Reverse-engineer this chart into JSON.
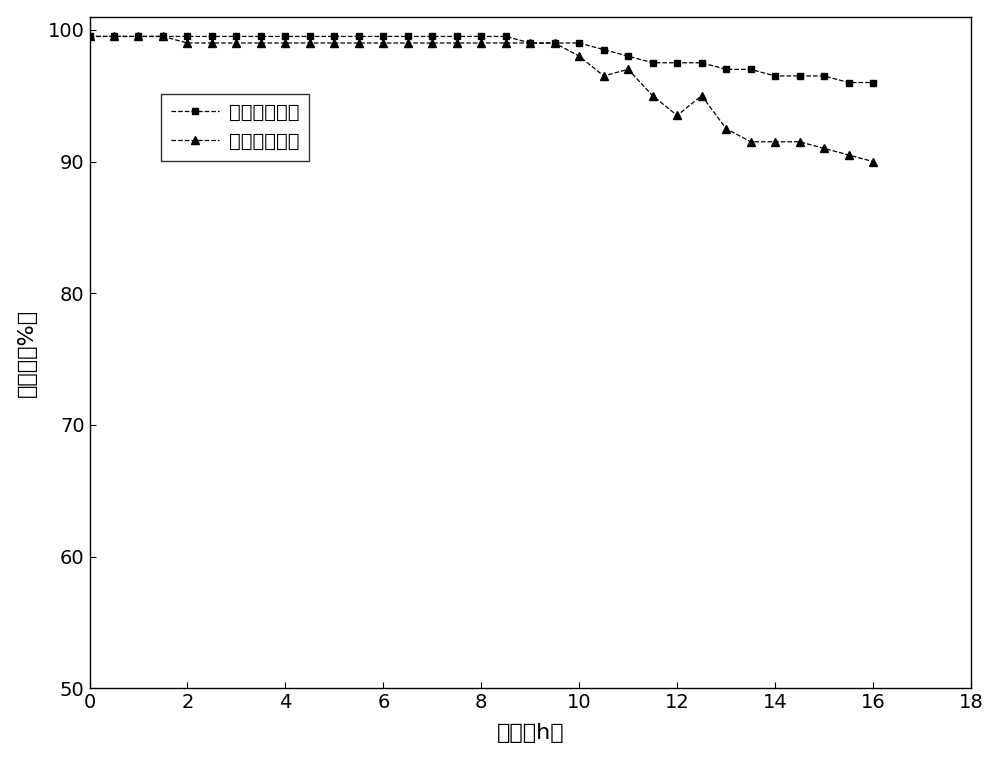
{
  "series1_label": "微波加热方式",
  "series2_label": "普通加热方式",
  "xlabel": "时间（h）",
  "ylabel": "转化率（%）",
  "xlim": [
    0,
    18
  ],
  "ylim": [
    50,
    101
  ],
  "xticks": [
    0,
    2,
    4,
    6,
    8,
    10,
    12,
    14,
    16,
    18
  ],
  "yticks": [
    50,
    60,
    70,
    80,
    90,
    100
  ],
  "background_color": "#ffffff",
  "line_color": "#000000",
  "series1_x": [
    0,
    0.5,
    1.0,
    1.5,
    2.0,
    2.5,
    3.0,
    3.5,
    4.0,
    4.5,
    5.0,
    5.5,
    6.0,
    6.5,
    7.0,
    7.5,
    8.0,
    8.5,
    9.0,
    9.5,
    10.0,
    10.5,
    11.0,
    11.5,
    12.0,
    12.5,
    13.0,
    13.5,
    14.0,
    14.5,
    15.0,
    15.5,
    16.0
  ],
  "series1_y": [
    99.5,
    99.5,
    99.5,
    99.5,
    99.5,
    99.5,
    99.5,
    99.5,
    99.5,
    99.5,
    99.5,
    99.5,
    99.5,
    99.5,
    99.5,
    99.5,
    99.5,
    99.5,
    99.0,
    99.0,
    99.0,
    98.5,
    98.0,
    97.5,
    97.5,
    97.5,
    97.0,
    97.0,
    96.5,
    96.5,
    96.5,
    96.0,
    96.0
  ],
  "series2_x": [
    0,
    0.5,
    1.0,
    1.5,
    2.0,
    2.5,
    3.0,
    3.5,
    4.0,
    4.5,
    5.0,
    5.5,
    6.0,
    6.5,
    7.0,
    7.5,
    8.0,
    8.5,
    9.0,
    9.5,
    10.0,
    10.5,
    11.0,
    11.5,
    12.0,
    12.5,
    13.0,
    13.5,
    14.0,
    14.5,
    15.0,
    15.5,
    16.0
  ],
  "series2_y": [
    99.5,
    99.5,
    99.5,
    99.5,
    99.0,
    99.0,
    99.0,
    99.0,
    99.0,
    99.0,
    99.0,
    99.0,
    99.0,
    99.0,
    99.0,
    99.0,
    99.0,
    99.0,
    99.0,
    99.0,
    98.0,
    96.5,
    97.0,
    95.0,
    93.5,
    95.0,
    92.5,
    91.5,
    91.5,
    91.5,
    91.0,
    90.5,
    90.0
  ]
}
